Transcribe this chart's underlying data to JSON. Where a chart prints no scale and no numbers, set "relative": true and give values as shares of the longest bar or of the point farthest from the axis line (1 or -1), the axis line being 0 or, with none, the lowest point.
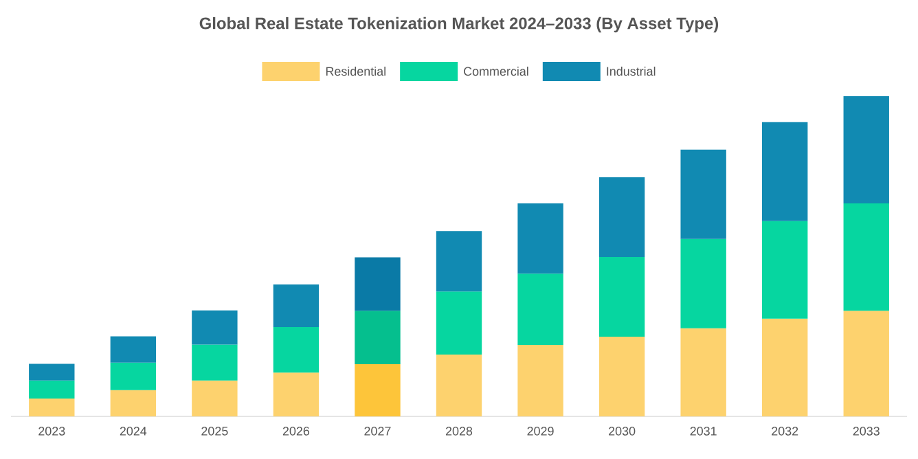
{
  "chart_data": {
    "type": "bar",
    "title": "Global Real Estate Tokenization Market 2024–2033 (By Asset Type)",
    "categories": [
      "2023",
      "2024",
      "2025",
      "2026",
      "2027",
      "2028",
      "2029",
      "2030",
      "2031",
      "2032",
      "2033"
    ],
    "stacked": true,
    "relative": true,
    "legend": "top",
    "series": [
      {
        "name": "Residential",
        "color": "#fdd26e",
        "colors": [
          "#fdd26e",
          "#fdd26e",
          "#fdd26e",
          "#fdd26e",
          "#fdc53a",
          "#fdd26e",
          "#fdd26e",
          "#fdd26e",
          "#fdd26e",
          "#fdd26e",
          "#fdd26e"
        ],
        "values": [
          0.056,
          0.082,
          0.112,
          0.137,
          0.163,
          0.193,
          0.223,
          0.249,
          0.275,
          0.305,
          0.33
        ]
      },
      {
        "name": "Commercial",
        "color": "#06d6a0",
        "colors": [
          "#06d6a0",
          "#06d6a0",
          "#06d6a0",
          "#06d6a0",
          "#05bf8e",
          "#06d6a0",
          "#06d6a0",
          "#06d6a0",
          "#06d6a0",
          "#06d6a0",
          "#06d6a0"
        ],
        "values": [
          0.056,
          0.086,
          0.112,
          0.142,
          0.167,
          0.197,
          0.223,
          0.249,
          0.279,
          0.305,
          0.335
        ]
      },
      {
        "name": "Industrial",
        "color": "#118ab2",
        "colors": [
          "#118ab2",
          "#118ab2",
          "#118ab2",
          "#118ab2",
          "#0a7aa6",
          "#118ab2",
          "#118ab2",
          "#118ab2",
          "#118ab2",
          "#118ab2",
          "#118ab2"
        ],
        "values": [
          0.052,
          0.082,
          0.107,
          0.133,
          0.167,
          0.189,
          0.219,
          0.249,
          0.279,
          0.309,
          0.335
        ]
      }
    ]
  }
}
